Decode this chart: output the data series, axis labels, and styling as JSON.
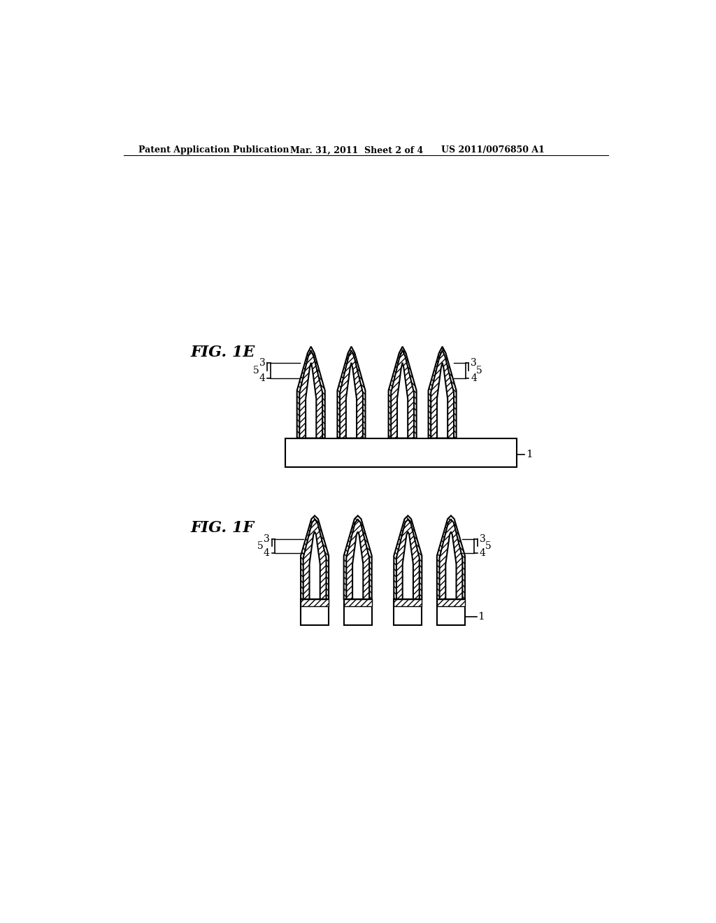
{
  "title_left": "Patent Application Publication",
  "title_mid": "Mar. 31, 2011  Sheet 2 of 4",
  "title_right": "US 2011/0076850 A1",
  "fig1e_label": "FIG. 1E",
  "fig1f_label": "FIG. 1F",
  "background_color": "#ffffff",
  "line_color": "#000000",
  "label_3": "3",
  "label_4": "4",
  "label_5": "5",
  "label_1": "1"
}
